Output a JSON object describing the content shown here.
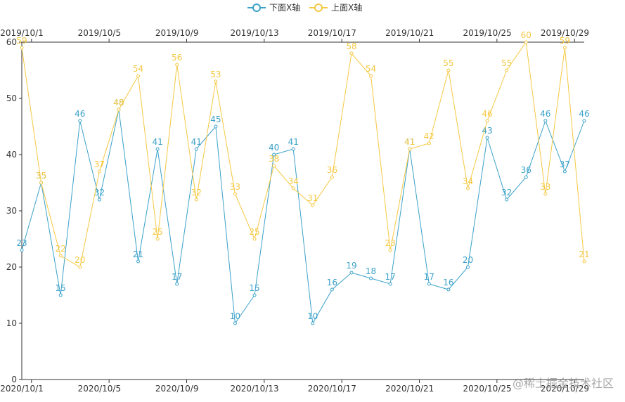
{
  "chart_data": {
    "type": "line",
    "ylim": [
      0,
      60
    ],
    "yticks": [
      0,
      10,
      20,
      30,
      40,
      50,
      60
    ],
    "grid": false,
    "legend_position": "top-center",
    "legend": [
      "下面X轴",
      "上面X轴"
    ],
    "bottom_axis": {
      "categories": [
        "2020/10/1",
        "2020/10/2",
        "2020/10/3",
        "2020/10/4",
        "2020/10/5",
        "2020/10/6",
        "2020/10/7",
        "2020/10/8",
        "2020/10/9",
        "2020/10/10",
        "2020/10/11",
        "2020/10/12",
        "2020/10/13",
        "2020/10/14",
        "2020/10/15",
        "2020/10/16",
        "2020/10/17",
        "2020/10/18",
        "2020/10/19",
        "2020/10/20",
        "2020/10/21",
        "2020/10/22",
        "2020/10/23",
        "2020/10/24",
        "2020/10/25",
        "2020/10/26",
        "2020/10/27",
        "2020/10/28",
        "2020/10/29",
        "2020/10/30"
      ],
      "tick_labels": [
        "2020/10/1",
        "2020/10/5",
        "2020/10/9",
        "2020/10/13",
        "2020/10/17",
        "2020/10/21",
        "2020/10/25",
        "2020/10/29"
      ]
    },
    "top_axis": {
      "categories": [
        "2019/10/1",
        "2019/10/2",
        "2019/10/3",
        "2019/10/4",
        "2019/10/5",
        "2019/10/6",
        "2019/10/7",
        "2019/10/8",
        "2019/10/9",
        "2019/10/10",
        "2019/10/11",
        "2019/10/12",
        "2019/10/13",
        "2019/10/14",
        "2019/10/15",
        "2019/10/16",
        "2019/10/17",
        "2019/10/18",
        "2019/10/19",
        "2019/10/20",
        "2019/10/21",
        "2019/10/22",
        "2019/10/23",
        "2019/10/24",
        "2019/10/25",
        "2019/10/26",
        "2019/10/27",
        "2019/10/28",
        "2019/10/29",
        "2019/10/30"
      ],
      "tick_labels": [
        "2019/10/1",
        "2019/10/5",
        "2019/10/9",
        "2019/10/13",
        "2019/10/17",
        "2019/10/21",
        "2019/10/25",
        "2019/10/29"
      ]
    },
    "series": [
      {
        "name": "下面X轴",
        "axis": "bottom",
        "color": "#3ba1c9",
        "values": [
          23,
          35,
          15,
          46,
          32,
          48,
          21,
          41,
          17,
          41,
          45,
          10,
          15,
          40,
          41,
          10,
          16,
          19,
          18,
          17,
          41,
          17,
          16,
          20,
          43,
          32,
          36,
          46,
          37,
          46
        ]
      },
      {
        "name": "上面X轴",
        "axis": "top",
        "color": "#f5c842",
        "values": [
          59,
          35,
          22,
          20,
          37,
          48,
          54,
          25,
          56,
          32,
          53,
          33,
          25,
          38,
          34,
          31,
          36,
          58,
          54,
          23,
          41,
          42,
          55,
          34,
          46,
          55,
          60,
          33,
          59,
          21
        ]
      }
    ]
  },
  "watermark": "@稀土掘金技术社区"
}
